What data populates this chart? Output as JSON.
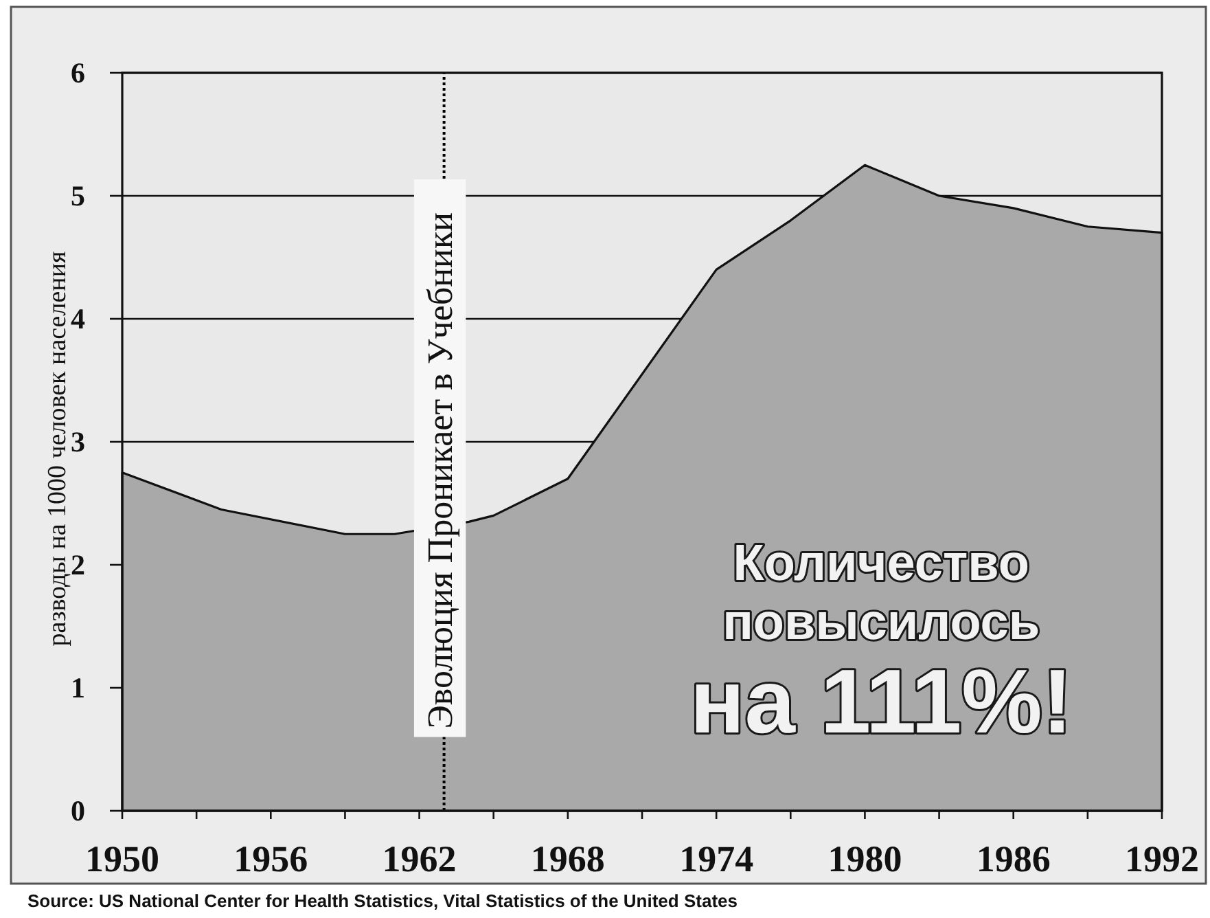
{
  "chart_data": {
    "type": "area",
    "ylabel": "разводы на 1000 человек населения",
    "x": [
      1950,
      1954,
      1959,
      1961,
      1964,
      1965,
      1968,
      1974,
      1977,
      1980,
      1983,
      1986,
      1989,
      1992
    ],
    "values": [
      2.75,
      2.45,
      2.25,
      2.25,
      2.35,
      2.4,
      2.7,
      4.4,
      4.8,
      5.25,
      5.0,
      4.9,
      4.75,
      4.7
    ],
    "color": "#a9a9a9",
    "xlim": [
      1950,
      1992
    ],
    "xticks": [
      1950,
      {
        "value": 1953,
        "label": null
      },
      1956,
      {
        "value": 1959,
        "label": null
      },
      1962,
      {
        "value": 1965,
        "label": null
      },
      1968,
      {
        "value": 1971,
        "label": null
      },
      1974,
      {
        "value": 1977,
        "label": null
      },
      1980,
      {
        "value": 1983,
        "label": null
      },
      1986,
      {
        "value": 1989,
        "label": null
      },
      1992
    ],
    "ylim": [
      0,
      6
    ],
    "yticks": [
      0,
      1,
      2,
      3,
      4,
      5,
      6
    ],
    "grid": "y",
    "ref_lines": [
      {
        "axis": "x",
        "value": 1963,
        "label": "Эволюция Проникает в Учебники",
        "line_style": "dotted",
        "color": "#000000"
      }
    ],
    "annotations": [
      "Количество повысилось на 111%!",
      "Source: US National Center for Health Statistics, Vital Statistics of the United States"
    ]
  }
}
